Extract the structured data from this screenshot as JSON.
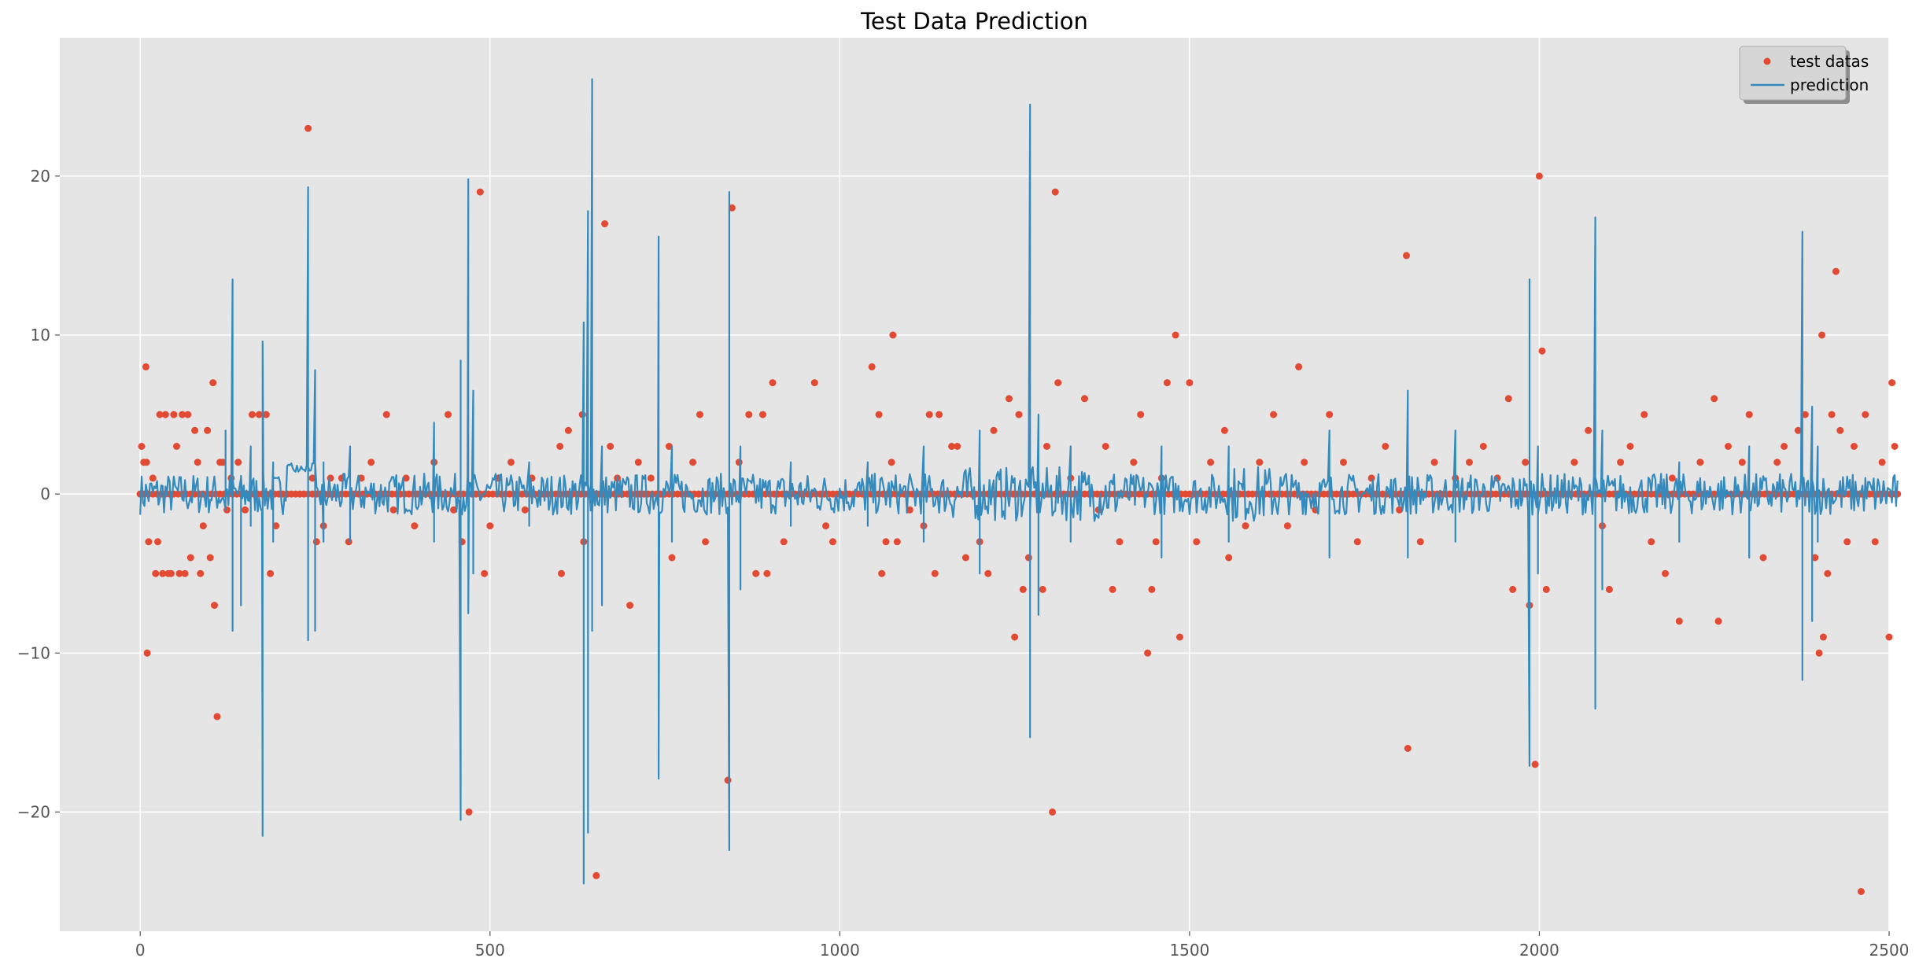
{
  "chart_data": {
    "type": "scatter",
    "title": "Test Data Prediction",
    "xlabel": "",
    "ylabel": "",
    "xlim": [
      -115,
      2500
    ],
    "ylim": [
      -27.5,
      28.7
    ],
    "xticks": [
      0,
      500,
      1000,
      1500,
      2000,
      2500
    ],
    "yticks": [
      -20,
      -10,
      0,
      10,
      20
    ],
    "grid": true,
    "legend_position": "top-right",
    "colors": {
      "test_datas": "#E24A33",
      "prediction": "#348ABD",
      "background": "#E5E5E5",
      "grid": "#FFFFFF"
    },
    "series": [
      {
        "name": "test datas",
        "kind": "scatter",
        "points": [
          [
            0,
            0
          ],
          [
            2,
            3
          ],
          [
            5,
            2
          ],
          [
            8,
            8
          ],
          [
            9,
            2
          ],
          [
            10,
            -10
          ],
          [
            12,
            -3
          ],
          [
            18,
            1
          ],
          [
            22,
            -5
          ],
          [
            25,
            -3
          ],
          [
            28,
            5
          ],
          [
            32,
            -5
          ],
          [
            36,
            5
          ],
          [
            40,
            -5
          ],
          [
            44,
            -5
          ],
          [
            48,
            5
          ],
          [
            52,
            3
          ],
          [
            56,
            -5
          ],
          [
            60,
            5
          ],
          [
            64,
            -5
          ],
          [
            68,
            5
          ],
          [
            72,
            -4
          ],
          [
            78,
            4
          ],
          [
            82,
            2
          ],
          [
            86,
            -5
          ],
          [
            90,
            -2
          ],
          [
            96,
            4
          ],
          [
            100,
            -4
          ],
          [
            104,
            7
          ],
          [
            106,
            -7
          ],
          [
            110,
            -14
          ],
          [
            114,
            2
          ],
          [
            118,
            2
          ],
          [
            124,
            -1
          ],
          [
            130,
            1
          ],
          [
            140,
            2
          ],
          [
            150,
            -1
          ],
          [
            160,
            5
          ],
          [
            170,
            5
          ],
          [
            180,
            5
          ],
          [
            186,
            -5
          ],
          [
            194,
            -2
          ],
          [
            210,
            0
          ],
          [
            240,
            23
          ],
          [
            246,
            1
          ],
          [
            252,
            -3
          ],
          [
            262,
            -2
          ],
          [
            272,
            1
          ],
          [
            288,
            1
          ],
          [
            298,
            -3
          ],
          [
            316,
            1
          ],
          [
            330,
            2
          ],
          [
            352,
            5
          ],
          [
            362,
            -1
          ],
          [
            380,
            1
          ],
          [
            392,
            -2
          ],
          [
            420,
            2
          ],
          [
            440,
            5
          ],
          [
            448,
            -1
          ],
          [
            460,
            -3
          ],
          [
            470,
            -20
          ],
          [
            486,
            19
          ],
          [
            492,
            -5
          ],
          [
            500,
            -2
          ],
          [
            512,
            1
          ],
          [
            530,
            2
          ],
          [
            550,
            -1
          ],
          [
            560,
            1
          ],
          [
            600,
            3
          ],
          [
            602,
            -5
          ],
          [
            612,
            4
          ],
          [
            632,
            5
          ],
          [
            634,
            -3
          ],
          [
            652,
            -24
          ],
          [
            664,
            17
          ],
          [
            672,
            3
          ],
          [
            682,
            1
          ],
          [
            700,
            -7
          ],
          [
            712,
            2
          ],
          [
            730,
            1
          ],
          [
            756,
            3
          ],
          [
            760,
            -4
          ],
          [
            790,
            2
          ],
          [
            800,
            5
          ],
          [
            808,
            -3
          ],
          [
            840,
            -18
          ],
          [
            846,
            18
          ],
          [
            856,
            2
          ],
          [
            870,
            5
          ],
          [
            880,
            -5
          ],
          [
            890,
            5
          ],
          [
            896,
            -5
          ],
          [
            904,
            7
          ],
          [
            920,
            -3
          ],
          [
            964,
            7
          ],
          [
            980,
            -2
          ],
          [
            990,
            -3
          ],
          [
            1010,
            0
          ],
          [
            1046,
            8
          ],
          [
            1056,
            5
          ],
          [
            1060,
            -5
          ],
          [
            1066,
            -3
          ],
          [
            1074,
            2
          ],
          [
            1076,
            10
          ],
          [
            1082,
            -3
          ],
          [
            1100,
            -1
          ],
          [
            1120,
            -2
          ],
          [
            1128,
            5
          ],
          [
            1136,
            -5
          ],
          [
            1142,
            5
          ],
          [
            1160,
            3
          ],
          [
            1168,
            3
          ],
          [
            1180,
            -4
          ],
          [
            1200,
            -3
          ],
          [
            1212,
            -5
          ],
          [
            1220,
            4
          ],
          [
            1242,
            6
          ],
          [
            1250,
            -9
          ],
          [
            1256,
            5
          ],
          [
            1262,
            -6
          ],
          [
            1270,
            -4
          ],
          [
            1290,
            -6
          ],
          [
            1296,
            3
          ],
          [
            1300,
            0
          ],
          [
            1304,
            -20
          ],
          [
            1308,
            19
          ],
          [
            1312,
            7
          ],
          [
            1330,
            1
          ],
          [
            1350,
            6
          ],
          [
            1370,
            -1
          ],
          [
            1380,
            3
          ],
          [
            1390,
            -6
          ],
          [
            1400,
            -3
          ],
          [
            1420,
            2
          ],
          [
            1430,
            5
          ],
          [
            1440,
            -10
          ],
          [
            1446,
            -6
          ],
          [
            1452,
            -3
          ],
          [
            1460,
            1
          ],
          [
            1468,
            7
          ],
          [
            1480,
            10
          ],
          [
            1486,
            -9
          ],
          [
            1500,
            7
          ],
          [
            1510,
            -3
          ],
          [
            1530,
            2
          ],
          [
            1550,
            4
          ],
          [
            1556,
            -4
          ],
          [
            1580,
            -2
          ],
          [
            1600,
            2
          ],
          [
            1620,
            5
          ],
          [
            1640,
            -2
          ],
          [
            1656,
            8
          ],
          [
            1664,
            2
          ],
          [
            1680,
            -1
          ],
          [
            1700,
            5
          ],
          [
            1720,
            2
          ],
          [
            1740,
            -3
          ],
          [
            1760,
            1
          ],
          [
            1780,
            3
          ],
          [
            1800,
            -1
          ],
          [
            1810,
            15
          ],
          [
            1812,
            -16
          ],
          [
            1830,
            -3
          ],
          [
            1850,
            2
          ],
          [
            1880,
            1
          ],
          [
            1900,
            2
          ],
          [
            1920,
            3
          ],
          [
            1940,
            1
          ],
          [
            1956,
            6
          ],
          [
            1962,
            -6
          ],
          [
            1980,
            2
          ],
          [
            1986,
            -7
          ],
          [
            1994,
            -17
          ],
          [
            2000,
            20
          ],
          [
            2004,
            9
          ],
          [
            2010,
            -6
          ],
          [
            2050,
            2
          ],
          [
            2070,
            4
          ],
          [
            2090,
            -2
          ],
          [
            2100,
            -6
          ],
          [
            2116,
            2
          ],
          [
            2130,
            3
          ],
          [
            2150,
            5
          ],
          [
            2160,
            -3
          ],
          [
            2180,
            -5
          ],
          [
            2190,
            1
          ],
          [
            2200,
            -8
          ],
          [
            2230,
            2
          ],
          [
            2250,
            6
          ],
          [
            2256,
            -8
          ],
          [
            2270,
            3
          ],
          [
            2290,
            2
          ],
          [
            2300,
            5
          ],
          [
            2320,
            -4
          ],
          [
            2340,
            2
          ],
          [
            2350,
            3
          ],
          [
            2370,
            4
          ],
          [
            2380,
            5
          ],
          [
            2394,
            -4
          ],
          [
            2400,
            -10
          ],
          [
            2404,
            10
          ],
          [
            2406,
            -9
          ],
          [
            2412,
            -5
          ],
          [
            2418,
            5
          ],
          [
            2424,
            14
          ],
          [
            2430,
            4
          ],
          [
            2440,
            -3
          ],
          [
            2450,
            3
          ],
          [
            2460,
            -25
          ],
          [
            2466,
            5
          ],
          [
            2480,
            -3
          ],
          [
            2490,
            2
          ],
          [
            2500,
            -9
          ],
          [
            2504,
            7
          ],
          [
            2508,
            3
          ],
          [
            2512,
            0
          ]
        ]
      },
      {
        "name": "prediction",
        "kind": "line",
        "spikes": [
          [
            122,
            -1,
            4
          ],
          [
            132,
            13.5,
            -8.6
          ],
          [
            144,
            1,
            -7
          ],
          [
            158,
            3,
            -2
          ],
          [
            175,
            -21.5,
            9.6
          ],
          [
            190,
            2,
            -3
          ],
          [
            240,
            19.3,
            -9.2
          ],
          [
            250,
            7.8,
            -8.6
          ],
          [
            262,
            -3,
            2
          ],
          [
            300,
            3,
            -3
          ],
          [
            420,
            4.5,
            -3
          ],
          [
            458,
            -20.5,
            8.4
          ],
          [
            469,
            19.8,
            -7.5
          ],
          [
            476,
            6.5,
            -5
          ],
          [
            556,
            2,
            -2
          ],
          [
            634,
            10.8,
            -24.5
          ],
          [
            640,
            17.8,
            -21.3
          ],
          [
            646,
            26.1,
            -8.6
          ],
          [
            660,
            3,
            -7
          ],
          [
            741,
            16.2,
            -17.9
          ],
          [
            760,
            3,
            -3
          ],
          [
            842,
            -22.4,
            19.0
          ],
          [
            858,
            3,
            -6
          ],
          [
            930,
            2,
            -2
          ],
          [
            1040,
            2,
            -2
          ],
          [
            1120,
            3,
            -3
          ],
          [
            1200,
            4,
            -5
          ],
          [
            1272,
            24.5,
            -15.3
          ],
          [
            1284,
            5,
            -7.6
          ],
          [
            1330,
            3,
            -3
          ],
          [
            1460,
            3,
            -4
          ],
          [
            1556,
            3,
            -3
          ],
          [
            1700,
            4,
            -4
          ],
          [
            1812,
            6.5,
            -4
          ],
          [
            1880,
            4,
            -3
          ],
          [
            1986,
            -17.1,
            13.5
          ],
          [
            1998,
            3,
            -5
          ],
          [
            2080,
            17.4,
            -13.5
          ],
          [
            2090,
            4,
            -6
          ],
          [
            2200,
            2,
            -3
          ],
          [
            2300,
            3,
            -4
          ],
          [
            2376,
            16.5,
            -11.7
          ],
          [
            2390,
            5.5,
            -8
          ],
          [
            2398,
            3,
            -3
          ]
        ]
      }
    ]
  }
}
